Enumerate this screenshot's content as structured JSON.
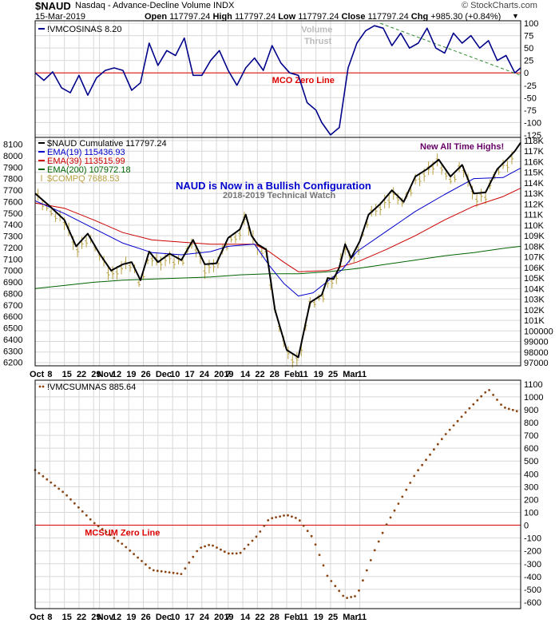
{
  "header": {
    "symbol": "$NAUD",
    "name": "Nasdaq - Advance-Decline Volume INDX",
    "watermark": "© StockCharts.com",
    "date": "15-Mar-2019",
    "open_label": "Open",
    "open": "117797.24",
    "high_label": "High",
    "high": "117797.24",
    "low_label": "Low",
    "low": "117797.24",
    "close_label": "Close",
    "close": "117797.24",
    "chg_label": "Chg",
    "chg": "+985.30 (+0.84%)"
  },
  "colors": {
    "navy": "#00008B",
    "red": "#DD0000",
    "black": "#000000",
    "blue_ema": "#0000CC",
    "red_ema": "#CC0000",
    "green_ema": "#006400",
    "compq": "#B8A040",
    "mcsum_dots": "#8B4513",
    "trend": "#2E8B2E",
    "grid": "#D8D8D8",
    "purple": "#660066"
  },
  "chart_data": [
    {
      "type": "line",
      "panel": "top",
      "legend": "!VMCOSINAS 8.20",
      "ylim": [
        -130,
        105
      ],
      "y_ticks": [
        100,
        75,
        50,
        25,
        0,
        -25,
        -50,
        -75,
        -100,
        -125
      ],
      "series": [
        {
          "name": "!VMCOSINAS",
          "color": "#00008B",
          "x": [
            0,
            3,
            6,
            9,
            12,
            15,
            18,
            21,
            24,
            27,
            30,
            33,
            36,
            39,
            42,
            45,
            48,
            51,
            54,
            57,
            60,
            63,
            66,
            69,
            72,
            75,
            78,
            81,
            84,
            87,
            90,
            93,
            96,
            98,
            101,
            104,
            107,
            110,
            113,
            116,
            119,
            122,
            125,
            128,
            131,
            134,
            137,
            140,
            143,
            146,
            149,
            152,
            155,
            158,
            161,
            164,
            166
          ],
          "values": [
            0,
            -15,
            2,
            -30,
            -40,
            -5,
            -45,
            -10,
            5,
            10,
            5,
            -35,
            -20,
            60,
            15,
            45,
            35,
            70,
            -5,
            -5,
            25,
            45,
            5,
            -25,
            10,
            30,
            5,
            55,
            20,
            0,
            -5,
            -60,
            -75,
            -100,
            -125,
            -110,
            10,
            60,
            85,
            95,
            90,
            55,
            80,
            50,
            60,
            90,
            50,
            40,
            80,
            60,
            75,
            50,
            65,
            25,
            35,
            0,
            10
          ]
        }
      ],
      "reference_line": {
        "y": 0,
        "label": "MCO Zero Line"
      },
      "annotations": [
        "Volume",
        "Thrust"
      ]
    },
    {
      "type": "line",
      "panel": "middle",
      "title": "NAUD is Now in a Bullish Configuration",
      "subtitle": "2018-2019 Technical Watch",
      "callout": "New All Time Highs!",
      "y_right_ticks": [
        "118K",
        "117K",
        "116K",
        "115K",
        "114K",
        "113K",
        "112K",
        "111K",
        "110K",
        "109K",
        "108K",
        "107K",
        "106K",
        "105K",
        "104K",
        "103K",
        "102K",
        "101K",
        "100000",
        "99000",
        "98000",
        "97000"
      ],
      "y_left_ticks": [
        8100,
        8000,
        7900,
        7800,
        7700,
        7600,
        7500,
        7400,
        7300,
        7200,
        7100,
        7000,
        6900,
        6800,
        6700,
        6600,
        6500,
        6400,
        6300,
        6200
      ],
      "ylim": [
        96700,
        118300
      ],
      "left_axis_range": [
        6200,
        8100
      ],
      "series": [
        {
          "name": "$NAUD Cumulative 117797.24",
          "color": "#000000",
          "x": [
            0,
            5,
            10,
            14,
            18,
            22,
            26,
            30,
            33,
            36,
            39,
            42,
            46,
            50,
            54,
            58,
            62,
            66,
            70,
            72,
            74,
            76,
            79,
            82,
            86,
            90,
            94,
            98,
            100,
            102,
            104,
            106,
            108,
            111,
            114,
            118,
            122,
            126,
            130,
            134,
            138,
            142,
            146,
            150,
            154,
            158,
            162,
            164,
            166
          ],
          "values": [
            113000,
            111800,
            110500,
            108000,
            109200,
            107300,
            105700,
            106300,
            106500,
            104800,
            107500,
            106500,
            107300,
            106700,
            108600,
            106300,
            106400,
            108800,
            109600,
            111000,
            109000,
            108200,
            107700,
            102000,
            98200,
            97500,
            102700,
            103400,
            105000,
            104900,
            106000,
            108200,
            106900,
            108500,
            111000,
            112000,
            113300,
            112200,
            114600,
            115300,
            116200,
            114600,
            115700,
            113000,
            113100,
            115300,
            116400,
            117000,
            117800
          ]
        },
        {
          "name": "EMA(19) 115436.93",
          "color": "#0000CC",
          "x": [
            0,
            10,
            20,
            30,
            40,
            50,
            60,
            66,
            70,
            75,
            80,
            85,
            90,
            95,
            100,
            105,
            110,
            120,
            130,
            140,
            150,
            160,
            166
          ],
          "values": [
            112300,
            111100,
            109700,
            108300,
            107400,
            107200,
            107500,
            108000,
            108100,
            108200,
            106200,
            104500,
            103300,
            103600,
            104700,
            105800,
            107500,
            109400,
            111300,
            112900,
            114400,
            114500,
            115400
          ]
        },
        {
          "name": "EMA(39) 113515.99",
          "color": "#CC0000",
          "x": [
            0,
            10,
            20,
            30,
            40,
            50,
            60,
            70,
            75,
            80,
            85,
            90,
            100,
            110,
            120,
            130,
            140,
            150,
            160,
            166
          ],
          "values": [
            112100,
            111600,
            110500,
            109300,
            108600,
            108400,
            108200,
            108200,
            108200,
            107500,
            106500,
            105600,
            105700,
            106500,
            107700,
            109000,
            110500,
            111800,
            112700,
            113500
          ]
        },
        {
          "name": "EMA(200) 107972.18",
          "color": "#006400",
          "x": [
            0,
            10,
            20,
            30,
            40,
            50,
            60,
            70,
            80,
            90,
            100,
            110,
            120,
            130,
            140,
            150,
            160,
            166
          ],
          "values": [
            104000,
            104300,
            104600,
            104800,
            104900,
            105000,
            105100,
            105300,
            105400,
            105400,
            105600,
            105900,
            106300,
            106700,
            107100,
            107400,
            107800,
            108000
          ]
        }
      ],
      "bar_series": {
        "name": "$COMPQ 7688.53",
        "color": "#B8A040",
        "style": "hlc"
      }
    },
    {
      "type": "scatter",
      "panel": "bottom",
      "legend": "!VMCSUMNAS 885.64",
      "ylim": [
        -600,
        1100
      ],
      "y_ticks": [
        1100,
        1000,
        900,
        800,
        700,
        600,
        500,
        400,
        300,
        200,
        100,
        0,
        -100,
        -200,
        -300,
        -400,
        -500,
        -600
      ],
      "series": [
        {
          "name": "!VMCSUMNAS",
          "color": "#8B4513",
          "x": [
            0,
            10,
            20,
            30,
            40,
            50,
            56,
            60,
            66,
            70,
            76,
            80,
            86,
            90,
            95,
            100,
            106,
            110,
            116,
            120,
            130,
            140,
            148,
            155,
            160,
            166
          ],
          "values": [
            430,
            250,
            20,
            -150,
            -350,
            -380,
            -180,
            -150,
            -220,
            -220,
            -80,
            50,
            80,
            50,
            -100,
            -400,
            -570,
            -550,
            -200,
            0,
            400,
            700,
            900,
            1060,
            920,
            880
          ]
        }
      ],
      "reference_line": {
        "y": 0,
        "label": "MCSUM Zero Line"
      }
    }
  ],
  "x_axis": {
    "labels": [
      "Oct",
      "8",
      "15",
      "22",
      "29",
      "Nov",
      "12",
      "19",
      "26",
      "Dec",
      "10",
      "17",
      "24",
      "2019",
      "7",
      "14",
      "22",
      "28",
      "Feb",
      "11",
      "19",
      "25",
      "Mar",
      "11"
    ],
    "positions": [
      0,
      5,
      10,
      15,
      20,
      22,
      27,
      32,
      37,
      42,
      47,
      52,
      57,
      62,
      66,
      71,
      76,
      81,
      86,
      91,
      96,
      101,
      106,
      111
    ],
    "bold": [
      true,
      false,
      false,
      false,
      false,
      true,
      false,
      false,
      false,
      true,
      false,
      false,
      false,
      true,
      false,
      false,
      false,
      false,
      true,
      false,
      false,
      false,
      true,
      false
    ],
    "domain": [
      0,
      166
    ]
  }
}
